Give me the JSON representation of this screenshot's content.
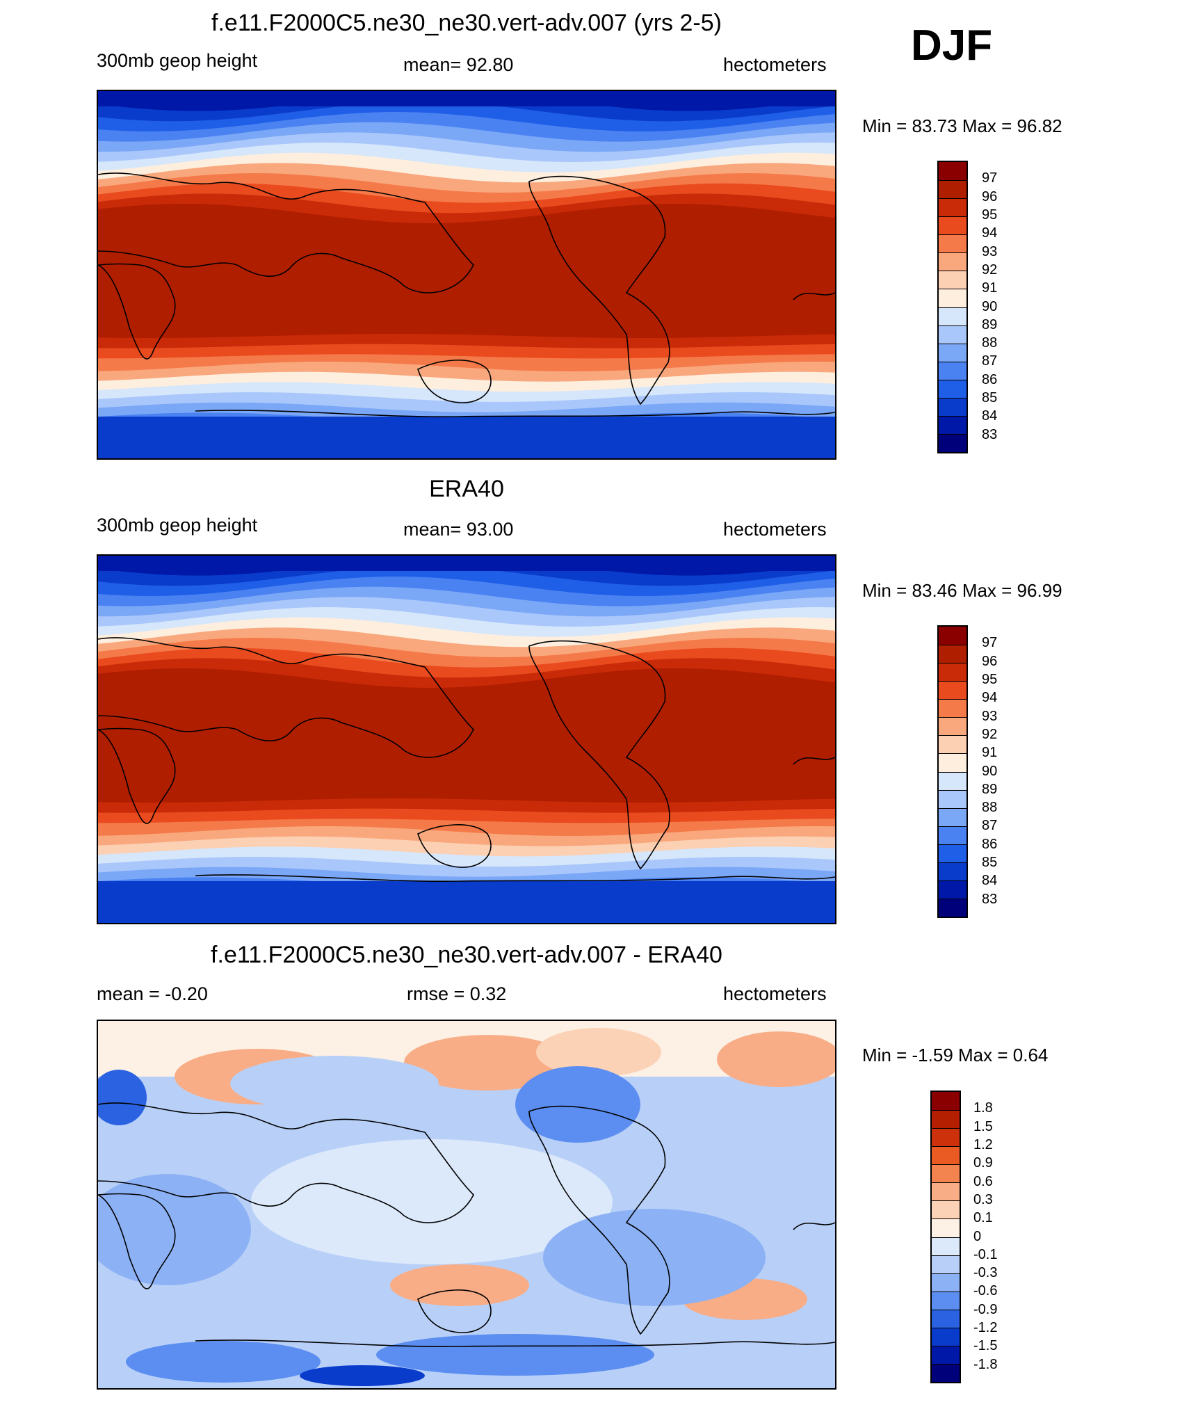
{
  "season": "DJF",
  "colormaps": {
    "height": [
      "#00007a",
      "#0018a8",
      "#0a3ccc",
      "#1f5ee6",
      "#4a82f2",
      "#7ba7f7",
      "#a9c7fa",
      "#d6e6fb",
      "#fdeede",
      "#fcd0b3",
      "#f9a87e",
      "#f57a4a",
      "#e94b1f",
      "#c92a08",
      "#b01e00",
      "#8a0000"
    ],
    "diff": [
      "#00007a",
      "#0018a8",
      "#0a3ccc",
      "#2a62e2",
      "#5b8ef0",
      "#8cb1f5",
      "#b8d0f8",
      "#dce9fb",
      "#fdf0e4",
      "#fbd2b6",
      "#f8ad86",
      "#f3834f",
      "#ea5a23",
      "#cd310b",
      "#b31f00",
      "#8a0000"
    ]
  },
  "panels": [
    {
      "title": "f.e11.F2000C5.ne30_ne30.vert-adv.007 (yrs 2-5)",
      "left_label": "300mb geop height",
      "center_label": "mean=  92.80",
      "right_label": "hectometers",
      "minmax": "Min =  83.73 Max =  96.82",
      "colorbar_labels": [
        "97",
        "96",
        "95",
        "94",
        "93",
        "92",
        "91",
        "90",
        "89",
        "88",
        "87",
        "86",
        "85",
        "84",
        "83"
      ],
      "band_levels": [
        1,
        2,
        3,
        4,
        5,
        6,
        7,
        8,
        10,
        11,
        12,
        13,
        14,
        14,
        14,
        14,
        14,
        14,
        14,
        14,
        14,
        14,
        14,
        14,
        13,
        12,
        11,
        10,
        8,
        7,
        6,
        5,
        4,
        3,
        2,
        2
      ]
    },
    {
      "title": "ERA40",
      "left_label": "300mb geop height",
      "center_label": "mean=  93.00",
      "right_label": "hectometers",
      "minmax": "Min =  83.46 Max =  96.99",
      "colorbar_labels": [
        "97",
        "96",
        "95",
        "94",
        "93",
        "92",
        "91",
        "90",
        "89",
        "88",
        "87",
        "86",
        "85",
        "84",
        "83"
      ],
      "band_levels": [
        1,
        2,
        3,
        4,
        5,
        6,
        7,
        8,
        10,
        11,
        12,
        13,
        14,
        14,
        14,
        14,
        14,
        14,
        14,
        14,
        14,
        14,
        14,
        14,
        13,
        12,
        11,
        10,
        9,
        7,
        6,
        5,
        4,
        3,
        2,
        2
      ]
    },
    {
      "title": "f.e11.F2000C5.ne30_ne30.vert-adv.007 - ERA40",
      "left_label": "mean =  -0.20",
      "center_label": "rmse =   0.32",
      "right_label": "hectometers",
      "minmax": "Min =  -1.59 Max =   0.64",
      "colorbar_labels": [
        "1.8",
        "1.5",
        "1.2",
        "0.9",
        "0.6",
        "0.3",
        "0.1",
        "0",
        "-0.1",
        "-0.3",
        "-0.6",
        "-0.9",
        "-1.2",
        "-1.5",
        "-1.8"
      ]
    }
  ]
}
